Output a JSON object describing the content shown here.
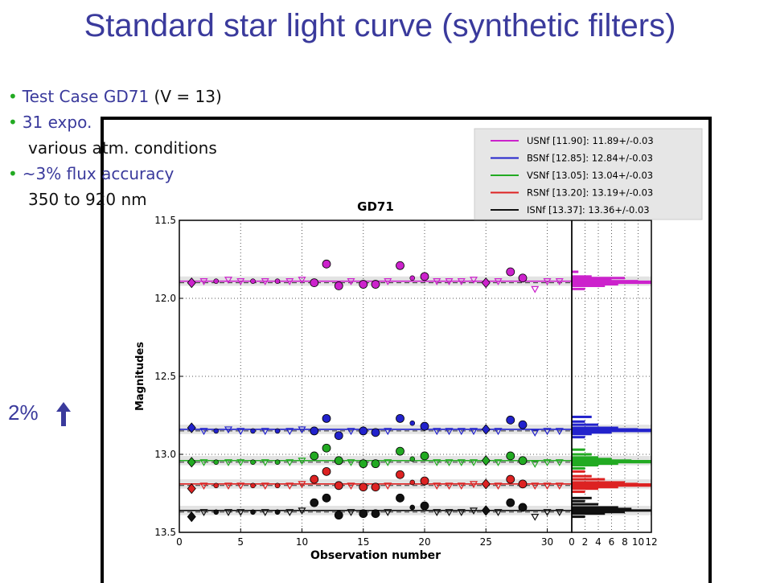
{
  "slide": {
    "title": "Standard star light curve (synthetic filters)",
    "bullets": [
      {
        "blue": "Test Case GD71",
        "black": " (V = 13)"
      },
      {
        "blue": "31 expo.",
        "black": ""
      },
      {
        "indent": "various atm.   conditions"
      },
      {
        "blue": "~3% flux   accuracy",
        "black": ""
      },
      {
        "indent": "350 to 920 nm"
      }
    ],
    "scale_label": "2%"
  },
  "chart_data": {
    "type": "scatter",
    "title": "GD71",
    "xlabel": "Observation number",
    "ylabel": "Magnitudes",
    "xlim": [
      0,
      32
    ],
    "ylim": [
      13.5,
      11.5
    ],
    "xticks": [
      "0",
      "5",
      "10",
      "15",
      "20",
      "25",
      "30"
    ],
    "yticks": [
      "11.5",
      "12.0",
      "12.5",
      "13.0",
      "13.5"
    ],
    "hist_xticks": [
      "0",
      "2",
      "4",
      "6",
      "8",
      "10",
      "12"
    ],
    "grid": true,
    "legend_position": "top-right",
    "series": [
      {
        "name": "USNf [11.90]: 11.89+/-0.03",
        "color": "#cc22cc",
        "mean": 11.89,
        "ref": 11.9,
        "band": 0.03,
        "points": [
          [
            1,
            11.9,
            "diamond"
          ],
          [
            2,
            11.89,
            "tri"
          ],
          [
            3,
            11.89,
            "dot"
          ],
          [
            4,
            11.88,
            "tri"
          ],
          [
            5,
            11.89,
            "tri"
          ],
          [
            6,
            11.89,
            "dot"
          ],
          [
            7,
            11.89,
            "tri"
          ],
          [
            8,
            11.89,
            "dot"
          ],
          [
            9,
            11.89,
            "tri"
          ],
          [
            10,
            11.88,
            "tri"
          ],
          [
            11,
            11.9,
            "circle"
          ],
          [
            12,
            11.78,
            "circle"
          ],
          [
            13,
            11.92,
            "circle"
          ],
          [
            14,
            11.89,
            "tri"
          ],
          [
            15,
            11.91,
            "circle"
          ],
          [
            16,
            11.91,
            "circle"
          ],
          [
            17,
            11.89,
            "tri"
          ],
          [
            18,
            11.79,
            "circle"
          ],
          [
            19,
            11.87,
            "dot"
          ],
          [
            20,
            11.86,
            "circle"
          ],
          [
            21,
            11.89,
            "tri"
          ],
          [
            22,
            11.89,
            "tri"
          ],
          [
            23,
            11.89,
            "tri"
          ],
          [
            24,
            11.88,
            "tri"
          ],
          [
            25,
            11.9,
            "diamond"
          ],
          [
            26,
            11.89,
            "tri"
          ],
          [
            27,
            11.83,
            "circle"
          ],
          [
            28,
            11.87,
            "circle"
          ],
          [
            29,
            11.94,
            "tri"
          ],
          [
            30,
            11.89,
            "tri"
          ],
          [
            31,
            11.89,
            "tri"
          ]
        ],
        "hist": [
          [
            11.83,
            1
          ],
          [
            11.86,
            3
          ],
          [
            11.87,
            8
          ],
          [
            11.88,
            6
          ],
          [
            11.89,
            10
          ],
          [
            11.9,
            12
          ],
          [
            11.91,
            7
          ],
          [
            11.92,
            5
          ],
          [
            11.94,
            2
          ]
        ]
      },
      {
        "name": "BSNf [12.85]: 12.84+/-0.03",
        "color": "#2222cc",
        "mean": 12.84,
        "ref": 12.85,
        "band": 0.03,
        "points": [
          [
            1,
            12.83,
            "diamond"
          ],
          [
            2,
            12.85,
            "tri"
          ],
          [
            3,
            12.85,
            "dot"
          ],
          [
            4,
            12.84,
            "tri"
          ],
          [
            5,
            12.85,
            "tri"
          ],
          [
            6,
            12.85,
            "dot"
          ],
          [
            7,
            12.85,
            "tri"
          ],
          [
            8,
            12.85,
            "dot"
          ],
          [
            9,
            12.85,
            "tri"
          ],
          [
            10,
            12.84,
            "tri"
          ],
          [
            11,
            12.85,
            "circle"
          ],
          [
            12,
            12.77,
            "circle"
          ],
          [
            13,
            12.88,
            "circle"
          ],
          [
            14,
            12.85,
            "tri"
          ],
          [
            15,
            12.85,
            "circle"
          ],
          [
            16,
            12.86,
            "circle"
          ],
          [
            17,
            12.85,
            "tri"
          ],
          [
            18,
            12.77,
            "circle"
          ],
          [
            19,
            12.8,
            "dot"
          ],
          [
            20,
            12.82,
            "circle"
          ],
          [
            21,
            12.85,
            "tri"
          ],
          [
            22,
            12.85,
            "tri"
          ],
          [
            23,
            12.85,
            "tri"
          ],
          [
            24,
            12.85,
            "tri"
          ],
          [
            25,
            12.84,
            "diamond"
          ],
          [
            26,
            12.85,
            "tri"
          ],
          [
            27,
            12.78,
            "circle"
          ],
          [
            28,
            12.81,
            "circle"
          ],
          [
            29,
            12.86,
            "tri"
          ],
          [
            30,
            12.85,
            "tri"
          ],
          [
            31,
            12.85,
            "tri"
          ]
        ],
        "hist": [
          [
            12.76,
            3
          ],
          [
            12.79,
            2
          ],
          [
            12.81,
            4
          ],
          [
            12.83,
            7
          ],
          [
            12.84,
            10
          ],
          [
            12.85,
            12
          ],
          [
            12.86,
            6
          ],
          [
            12.87,
            3
          ],
          [
            12.89,
            2
          ]
        ]
      },
      {
        "name": "VSNf [13.05]: 13.04+/-0.03",
        "color": "#22aa22",
        "mean": 13.04,
        "ref": 13.05,
        "band": 0.03,
        "points": [
          [
            1,
            13.05,
            "diamond"
          ],
          [
            2,
            13.05,
            "tri"
          ],
          [
            3,
            13.05,
            "dot"
          ],
          [
            4,
            13.05,
            "tri"
          ],
          [
            5,
            13.05,
            "tri"
          ],
          [
            6,
            13.05,
            "dot"
          ],
          [
            7,
            13.05,
            "tri"
          ],
          [
            8,
            13.05,
            "dot"
          ],
          [
            9,
            13.05,
            "tri"
          ],
          [
            10,
            13.04,
            "tri"
          ],
          [
            11,
            13.01,
            "circle"
          ],
          [
            12,
            12.96,
            "circle"
          ],
          [
            13,
            13.04,
            "circle"
          ],
          [
            14,
            13.05,
            "tri"
          ],
          [
            15,
            13.06,
            "circle"
          ],
          [
            16,
            13.06,
            "circle"
          ],
          [
            17,
            13.05,
            "tri"
          ],
          [
            18,
            12.98,
            "circle"
          ],
          [
            19,
            13.03,
            "dot"
          ],
          [
            20,
            13.01,
            "circle"
          ],
          [
            21,
            13.05,
            "tri"
          ],
          [
            22,
            13.05,
            "tri"
          ],
          [
            23,
            13.05,
            "tri"
          ],
          [
            24,
            13.05,
            "tri"
          ],
          [
            25,
            13.04,
            "diamond"
          ],
          [
            26,
            13.05,
            "tri"
          ],
          [
            27,
            13.01,
            "circle"
          ],
          [
            28,
            13.04,
            "circle"
          ],
          [
            29,
            13.06,
            "tri"
          ],
          [
            30,
            13.05,
            "tri"
          ],
          [
            31,
            13.05,
            "tri"
          ]
        ],
        "hist": [
          [
            12.97,
            2
          ],
          [
            13.0,
            3
          ],
          [
            13.02,
            4
          ],
          [
            13.03,
            6
          ],
          [
            13.04,
            9
          ],
          [
            13.05,
            12
          ],
          [
            13.06,
            7
          ],
          [
            13.07,
            4
          ],
          [
            13.09,
            2
          ]
        ]
      },
      {
        "name": "RSNf [13.20]: 13.19+/-0.03",
        "color": "#dd2222",
        "mean": 13.19,
        "ref": 13.2,
        "band": 0.03,
        "points": [
          [
            1,
            13.22,
            "diamond"
          ],
          [
            2,
            13.2,
            "tri"
          ],
          [
            3,
            13.2,
            "dot"
          ],
          [
            4,
            13.2,
            "tri"
          ],
          [
            5,
            13.2,
            "tri"
          ],
          [
            6,
            13.2,
            "dot"
          ],
          [
            7,
            13.2,
            "tri"
          ],
          [
            8,
            13.2,
            "dot"
          ],
          [
            9,
            13.2,
            "tri"
          ],
          [
            10,
            13.19,
            "tri"
          ],
          [
            11,
            13.16,
            "circle"
          ],
          [
            12,
            13.11,
            "circle"
          ],
          [
            13,
            13.2,
            "circle"
          ],
          [
            14,
            13.2,
            "tri"
          ],
          [
            15,
            13.21,
            "circle"
          ],
          [
            16,
            13.21,
            "circle"
          ],
          [
            17,
            13.2,
            "tri"
          ],
          [
            18,
            13.13,
            "circle"
          ],
          [
            19,
            13.18,
            "dot"
          ],
          [
            20,
            13.17,
            "circle"
          ],
          [
            21,
            13.2,
            "tri"
          ],
          [
            22,
            13.2,
            "tri"
          ],
          [
            23,
            13.2,
            "tri"
          ],
          [
            24,
            13.19,
            "tri"
          ],
          [
            25,
            13.19,
            "diamond"
          ],
          [
            26,
            13.2,
            "tri"
          ],
          [
            27,
            13.16,
            "circle"
          ],
          [
            28,
            13.19,
            "circle"
          ],
          [
            29,
            13.2,
            "tri"
          ],
          [
            30,
            13.2,
            "tri"
          ],
          [
            31,
            13.2,
            "tri"
          ]
        ],
        "hist": [
          [
            13.11,
            2
          ],
          [
            13.14,
            3
          ],
          [
            13.16,
            5
          ],
          [
            13.18,
            8
          ],
          [
            13.19,
            10
          ],
          [
            13.2,
            12
          ],
          [
            13.21,
            7
          ],
          [
            13.22,
            4
          ],
          [
            13.24,
            2
          ]
        ]
      },
      {
        "name": "ISNf [13.37]: 13.36+/-0.03",
        "color": "#111111",
        "mean": 13.36,
        "ref": 13.37,
        "band": 0.03,
        "points": [
          [
            1,
            13.4,
            "diamond"
          ],
          [
            2,
            13.37,
            "tri"
          ],
          [
            3,
            13.37,
            "dot"
          ],
          [
            4,
            13.37,
            "tri"
          ],
          [
            5,
            13.37,
            "tri"
          ],
          [
            6,
            13.37,
            "dot"
          ],
          [
            7,
            13.37,
            "tri"
          ],
          [
            8,
            13.37,
            "dot"
          ],
          [
            9,
            13.37,
            "tri"
          ],
          [
            10,
            13.36,
            "tri"
          ],
          [
            11,
            13.31,
            "circle"
          ],
          [
            12,
            13.28,
            "circle"
          ],
          [
            13,
            13.39,
            "circle"
          ],
          [
            14,
            13.37,
            "tri"
          ],
          [
            15,
            13.38,
            "circle"
          ],
          [
            16,
            13.38,
            "circle"
          ],
          [
            17,
            13.37,
            "tri"
          ],
          [
            18,
            13.28,
            "circle"
          ],
          [
            19,
            13.34,
            "dot"
          ],
          [
            20,
            13.33,
            "circle"
          ],
          [
            21,
            13.37,
            "tri"
          ],
          [
            22,
            13.37,
            "tri"
          ],
          [
            23,
            13.37,
            "tri"
          ],
          [
            24,
            13.36,
            "tri"
          ],
          [
            25,
            13.36,
            "diamond"
          ],
          [
            26,
            13.37,
            "tri"
          ],
          [
            27,
            13.31,
            "circle"
          ],
          [
            28,
            13.34,
            "circle"
          ],
          [
            29,
            13.4,
            "tri"
          ],
          [
            30,
            13.37,
            "tri"
          ],
          [
            31,
            13.37,
            "tri"
          ]
        ],
        "hist": [
          [
            13.28,
            3
          ],
          [
            13.3,
            2
          ],
          [
            13.32,
            4
          ],
          [
            13.34,
            7
          ],
          [
            13.35,
            9
          ],
          [
            13.36,
            12
          ],
          [
            13.37,
            8
          ],
          [
            13.38,
            5
          ],
          [
            13.4,
            2
          ]
        ]
      }
    ]
  }
}
